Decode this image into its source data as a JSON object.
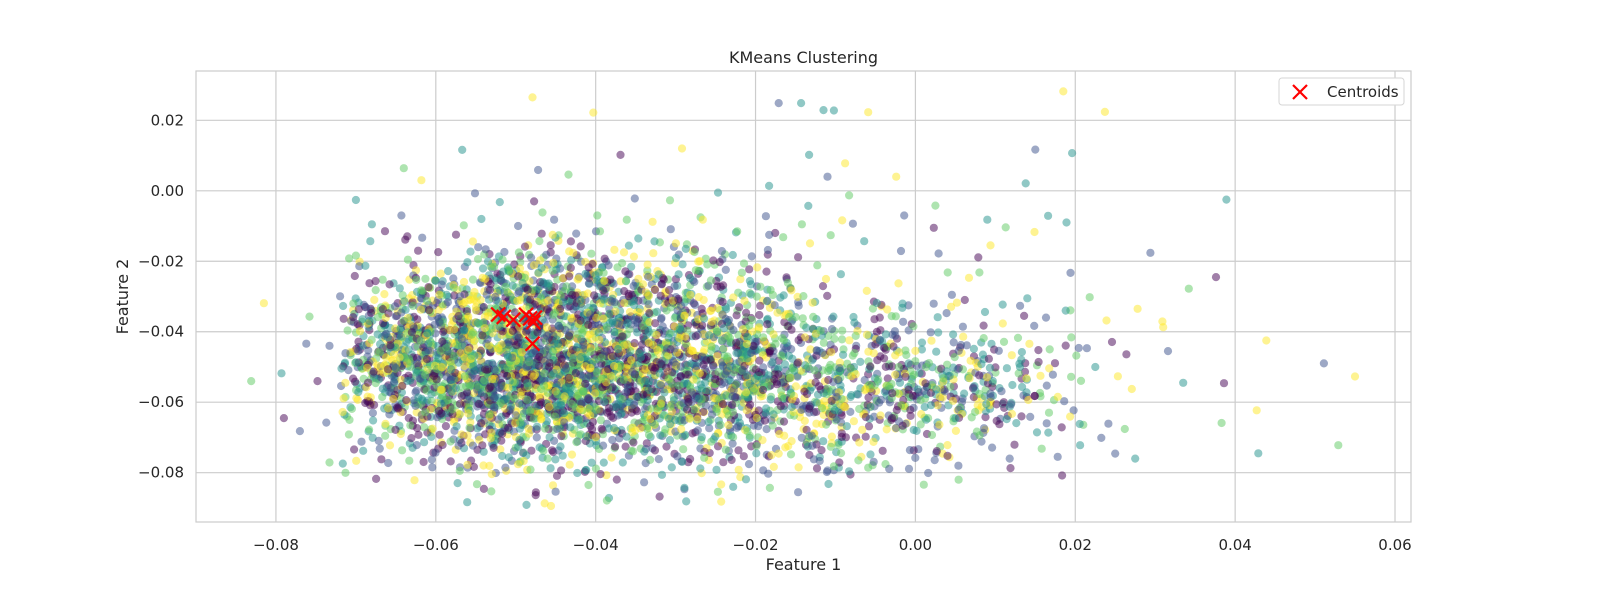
{
  "chart_data": {
    "type": "scatter",
    "title": "KMeans Clustering",
    "xlabel": "Feature 1",
    "ylabel": "Feature 2",
    "xlim": [
      -0.09,
      0.062
    ],
    "ylim": [
      -0.094,
      0.034
    ],
    "xticks": [
      -0.08,
      -0.06,
      -0.04,
      -0.02,
      0.0,
      0.02,
      0.04,
      0.06
    ],
    "xtick_labels": [
      "−0.08",
      "−0.06",
      "−0.04",
      "−0.02",
      "0.00",
      "0.02",
      "0.04",
      "0.06"
    ],
    "yticks": [
      -0.08,
      -0.06,
      -0.04,
      -0.02,
      0.0,
      0.02
    ],
    "ytick_labels": [
      "−0.08",
      "−0.06",
      "−0.04",
      "−0.02",
      "0.00",
      "0.02"
    ],
    "grid": true,
    "legend": {
      "placement": "top-right",
      "entries": [
        "Centroids"
      ]
    },
    "colors": {
      "clusters": [
        "#440154",
        "#3b528b",
        "#21918c",
        "#5ec962",
        "#fde725"
      ],
      "centroid": "#ff0000",
      "grid": "#cccccc",
      "axes_edge": "#cccccc"
    },
    "centroids": [
      {
        "x": -0.0522,
        "y": -0.0351
      },
      {
        "x": -0.0515,
        "y": -0.0358
      },
      {
        "x": -0.0503,
        "y": -0.0366
      },
      {
        "x": -0.0487,
        "y": -0.0352
      },
      {
        "x": -0.0482,
        "y": -0.0362
      },
      {
        "x": -0.0478,
        "y": -0.0373
      },
      {
        "x": -0.0476,
        "y": -0.036
      },
      {
        "x": -0.0479,
        "y": -0.0434
      }
    ],
    "points": [
      [
        -0.0479,
        0.0265,
        4
      ],
      [
        -0.0403,
        0.0222,
        4
      ],
      [
        -0.0171,
        0.0249,
        1
      ],
      [
        -0.0143,
        0.0249,
        2
      ],
      [
        -0.0115,
        0.0229,
        2
      ],
      [
        -0.0102,
        0.0228,
        2
      ],
      [
        -0.0059,
        0.0223,
        4
      ],
      [
        0.0185,
        0.0282,
        4
      ],
      [
        0.0237,
        0.0224,
        4
      ],
      [
        -0.0567,
        0.0116,
        2
      ],
      [
        -0.0369,
        0.0102,
        0
      ],
      [
        -0.0292,
        0.012,
        4
      ],
      [
        0.015,
        0.0117,
        1
      ],
      [
        0.0196,
        0.0107,
        2
      ],
      [
        -0.0133,
        0.0102,
        2
      ],
      [
        -0.0088,
        0.0078,
        4
      ],
      [
        -0.064,
        0.0064,
        3
      ],
      [
        -0.0618,
        0.003,
        4
      ],
      [
        -0.0472,
        0.0059,
        1
      ],
      [
        -0.0434,
        0.0046,
        3
      ],
      [
        0.0389,
        -0.0025,
        2
      ],
      [
        0.0138,
        0.0021,
        2
      ],
      [
        -0.0024,
        0.004,
        4
      ],
      [
        -0.011,
        0.004,
        1
      ],
      [
        -0.0815,
        -0.0319,
        4
      ],
      [
        -0.0831,
        -0.054,
        3
      ],
      [
        -0.0793,
        -0.0518,
        2
      ],
      [
        -0.079,
        -0.0645,
        0
      ],
      [
        -0.077,
        -0.0682,
        1
      ],
      [
        -0.0737,
        -0.0658,
        1
      ],
      [
        -0.0733,
        -0.0771,
        3
      ],
      [
        -0.0748,
        -0.054,
        0
      ],
      [
        -0.07,
        -0.0026,
        2
      ],
      [
        -0.068,
        -0.0095,
        2
      ],
      [
        -0.0643,
        -0.007,
        1
      ],
      [
        -0.0551,
        -0.0007,
        1
      ],
      [
        -0.052,
        -0.0032,
        2
      ],
      [
        -0.0477,
        -0.003,
        0
      ],
      [
        -0.0351,
        -0.0022,
        1
      ],
      [
        -0.0307,
        -0.0027,
        3
      ],
      [
        -0.0247,
        -0.0005,
        2
      ],
      [
        -0.0183,
        0.0014,
        2
      ],
      [
        -0.0134,
        -0.0043,
        2
      ],
      [
        -0.0083,
        -0.0013,
        3
      ],
      [
        0.0025,
        -0.0042,
        3
      ],
      [
        0.0189,
        -0.009,
        2
      ],
      [
        0.009,
        -0.0082,
        2
      ],
      [
        0.0113,
        -0.0104,
        3
      ],
      [
        0.0023,
        -0.0105,
        0
      ],
      [
        -0.0014,
        -0.007,
        1
      ],
      [
        0.0294,
        -0.0176,
        1
      ],
      [
        0.0376,
        -0.0245,
        0
      ],
      [
        0.0342,
        -0.0278,
        3
      ],
      [
        0.0194,
        -0.0233,
        1
      ],
      [
        0.0439,
        -0.0425,
        4
      ],
      [
        0.0511,
        -0.049,
        1
      ],
      [
        0.055,
        -0.0527,
        4
      ],
      [
        0.0529,
        -0.0722,
        3
      ],
      [
        0.0429,
        -0.0745,
        2
      ],
      [
        0.0427,
        -0.0623,
        4
      ],
      [
        0.0383,
        -0.0659,
        3
      ],
      [
        0.0386,
        -0.0546,
        0
      ],
      [
        0.0335,
        -0.0545,
        2
      ],
      [
        0.031,
        -0.0387,
        4
      ],
      [
        0.0309,
        -0.0371,
        4
      ],
      [
        0.0278,
        -0.0335,
        4
      ],
      [
        0.0316,
        -0.0455,
        1
      ],
      [
        0.0264,
        -0.0464,
        0
      ],
      [
        0.0239,
        -0.0368,
        4
      ],
      [
        0.0246,
        -0.0429,
        0
      ],
      [
        0.0218,
        -0.0302,
        3
      ],
      [
        0.0195,
        -0.0416,
        3
      ],
      [
        0.0225,
        -0.05,
        2
      ],
      [
        0.0275,
        -0.076,
        2
      ],
      [
        0.0262,
        -0.0676,
        3
      ],
      [
        0.025,
        -0.0746,
        1
      ],
      [
        0.0206,
        -0.0722,
        2
      ],
      [
        0.0178,
        -0.0755,
        1
      ],
      [
        0.0158,
        -0.0732,
        3
      ],
      [
        0.0118,
        -0.076,
        1
      ],
      [
        0.0119,
        -0.0787,
        0
      ],
      [
        0.0054,
        -0.082,
        3
      ],
      [
        0.0016,
        -0.0801,
        1
      ],
      [
        -0.0008,
        -0.0789,
        1
      ],
      [
        -0.0059,
        -0.0786,
        3
      ],
      [
        -0.0083,
        -0.0796,
        2
      ],
      [
        -0.0102,
        -0.0782,
        3
      ],
      [
        -0.0127,
        -0.0762,
        1
      ],
      [
        -0.018,
        -0.075,
        4
      ],
      [
        -0.0199,
        -0.0745,
        2
      ],
      [
        -0.023,
        -0.0764,
        0
      ],
      [
        -0.0243,
        -0.0882,
        4
      ],
      [
        -0.0289,
        -0.0847,
        1
      ],
      [
        -0.0289,
        -0.0843,
        2
      ],
      [
        -0.032,
        -0.0868,
        0
      ],
      [
        -0.0317,
        -0.0806,
        2
      ],
      [
        -0.0386,
        -0.0879,
        3
      ],
      [
        -0.0394,
        -0.0804,
        0
      ],
      [
        -0.046,
        -0.076,
        3
      ],
      [
        -0.0497,
        -0.0776,
        4
      ],
      [
        -0.0525,
        -0.0801,
        1
      ],
      [
        -0.053,
        -0.0804,
        4
      ],
      [
        -0.057,
        -0.0795,
        3
      ],
      [
        -0.0605,
        -0.0763,
        1
      ],
      [
        -0.0668,
        -0.0762,
        0
      ],
      [
        -0.0693,
        -0.0712,
        1
      ],
      [
        -0.0228,
        -0.084,
        2
      ],
      [
        -0.0617,
        -0.0133,
        1
      ],
      [
        -0.0597,
        -0.0174,
        0
      ],
      [
        -0.0565,
        -0.0098,
        3
      ],
      [
        -0.0543,
        -0.008,
        2
      ],
      [
        -0.0497,
        -0.01,
        1
      ],
      [
        -0.0452,
        -0.0082,
        1
      ],
      [
        -0.0398,
        -0.007,
        3
      ],
      [
        -0.0361,
        -0.0082,
        3
      ],
      [
        -0.0306,
        -0.0109,
        1
      ],
      [
        -0.0266,
        -0.0082,
        4
      ],
      [
        -0.0223,
        -0.0115,
        3
      ],
      [
        -0.0187,
        -0.0072,
        1
      ],
      [
        -0.0142,
        -0.0095,
        3
      ],
      [
        -0.0106,
        -0.0126,
        3
      ],
      [
        -0.0064,
        -0.0143,
        2
      ],
      [
        -0.0018,
        -0.0171,
        1
      ],
      [
        0.0029,
        -0.0178,
        1
      ],
      [
        0.008,
        -0.0232,
        3
      ],
      [
        0.0094,
        -0.0155,
        4
      ],
      [
        0.0149,
        -0.0117,
        4
      ],
      [
        0.0166,
        -0.0071,
        2
      ],
      [
        0.014,
        -0.0305,
        2
      ],
      [
        0.0168,
        -0.045,
        3
      ],
      [
        0.0172,
        -0.0522,
        1
      ],
      [
        0.0087,
        -0.0344,
        2
      ],
      [
        0.0039,
        -0.0347,
        1
      ],
      [
        0.0067,
        -0.0247,
        4
      ],
      [
        0.0188,
        -0.034,
        2
      ],
      [
        -0.0716,
        -0.0327,
        2
      ],
      [
        -0.0713,
        -0.0461,
        1
      ],
      [
        -0.0705,
        -0.0619,
        3
      ],
      [
        -0.0733,
        -0.044,
        1
      ],
      [
        -0.0758,
        -0.0357,
        3
      ],
      [
        -0.0762,
        -0.0434,
        1
      ],
      [
        -0.07,
        -0.0184,
        3
      ],
      [
        -0.0682,
        -0.0143,
        2
      ]
    ],
    "dense_regions": [
      {
        "cx": -0.052,
        "cy": -0.052,
        "sx": 0.01,
        "sy": 0.012,
        "n": 1500
      },
      {
        "cx": -0.036,
        "cy": -0.052,
        "sx": 0.011,
        "sy": 0.012,
        "n": 1100
      },
      {
        "cx": -0.018,
        "cy": -0.053,
        "sx": 0.01,
        "sy": 0.012,
        "n": 650
      },
      {
        "cx": -0.004,
        "cy": -0.055,
        "sx": 0.008,
        "sy": 0.01,
        "n": 320
      },
      {
        "cx": 0.01,
        "cy": -0.055,
        "sx": 0.007,
        "sy": 0.009,
        "n": 150
      },
      {
        "cx": -0.048,
        "cy": -0.03,
        "sx": 0.008,
        "sy": 0.008,
        "n": 380
      },
      {
        "cx": -0.03,
        "cy": -0.03,
        "sx": 0.009,
        "sy": 0.009,
        "n": 260
      },
      {
        "cx": -0.065,
        "cy": -0.045,
        "sx": 0.005,
        "sy": 0.011,
        "n": 280
      }
    ]
  }
}
